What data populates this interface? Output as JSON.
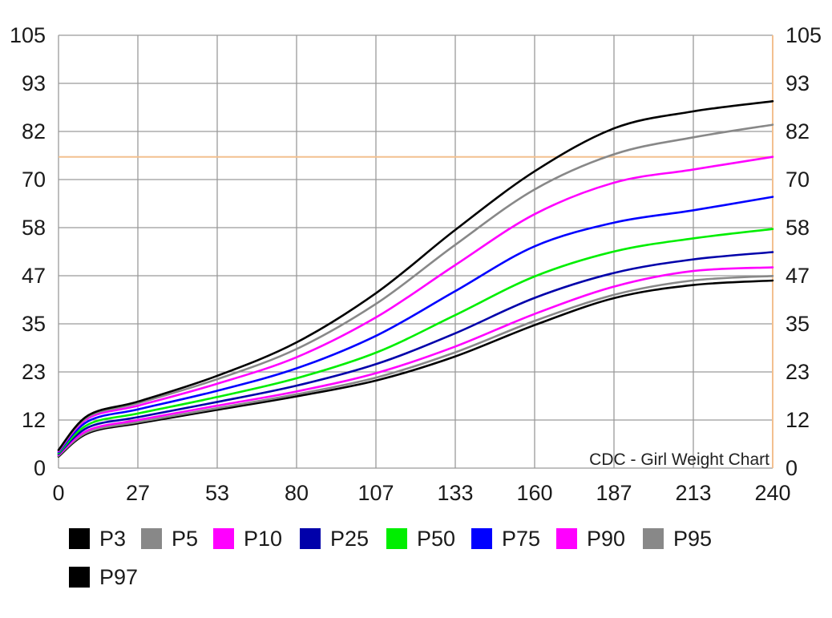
{
  "chart_data": {
    "type": "line",
    "title": "",
    "annotation": "CDC - Girl Weight Chart",
    "xlabel": "",
    "ylabel": "",
    "xlim": [
      0,
      240
    ],
    "ylim": [
      0,
      105
    ],
    "grid": true,
    "legend_position": "bottom-left",
    "x_ticks": [
      "0",
      "27",
      "53",
      "80",
      "107",
      "133",
      "160",
      "187",
      "213",
      "240"
    ],
    "y_ticks": [
      "0",
      "12",
      "23",
      "35",
      "47",
      "58",
      "70",
      "82",
      "93",
      "105"
    ],
    "reference_line_y": 75.5,
    "x": [
      0,
      10,
      27,
      53,
      80,
      107,
      133,
      160,
      187,
      213,
      240
    ],
    "series": [
      {
        "name": "P3",
        "color": "#000000",
        "values": [
          2.8,
          8.5,
          10.9,
          14.1,
          17.4,
          21.3,
          27.0,
          34.7,
          41.3,
          44.4,
          45.5
        ]
      },
      {
        "name": "P5",
        "color": "#888888",
        "values": [
          3.0,
          8.8,
          11.2,
          14.5,
          17.9,
          22.0,
          28.0,
          35.7,
          42.1,
          45.5,
          46.6
        ]
      },
      {
        "name": "P10",
        "color": "#ff00ff",
        "values": [
          3.2,
          9.2,
          11.7,
          15.1,
          18.6,
          23.1,
          29.4,
          37.4,
          44.1,
          47.8,
          48.7
        ]
      },
      {
        "name": "P25",
        "color": "#0000aa",
        "values": [
          3.4,
          9.9,
          12.4,
          16.0,
          20.0,
          25.3,
          32.6,
          41.3,
          47.4,
          50.6,
          52.4
        ]
      },
      {
        "name": "P50",
        "color": "#00ee00",
        "values": [
          3.6,
          10.6,
          13.3,
          17.2,
          21.8,
          28.1,
          37.0,
          46.5,
          52.6,
          55.7,
          58.0
        ]
      },
      {
        "name": "P75",
        "color": "#0000ff",
        "values": [
          3.9,
          11.4,
          14.3,
          18.7,
          24.2,
          32.2,
          42.8,
          53.8,
          59.6,
          62.5,
          65.8
        ]
      },
      {
        "name": "P90",
        "color": "#ff00ff",
        "values": [
          4.1,
          12.1,
          15.2,
          20.4,
          26.9,
          36.7,
          49.1,
          61.6,
          69.3,
          72.4,
          75.5
        ]
      },
      {
        "name": "P95",
        "color": "#888888",
        "values": [
          4.3,
          12.5,
          15.8,
          21.5,
          28.9,
          40.0,
          54.0,
          67.6,
          76.2,
          80.2,
          83.3
        ]
      },
      {
        "name": "P97",
        "color": "#000000",
        "values": [
          4.4,
          12.8,
          16.2,
          22.3,
          30.5,
          42.6,
          57.6,
          72.0,
          82.5,
          86.5,
          89.0
        ]
      }
    ]
  }
}
